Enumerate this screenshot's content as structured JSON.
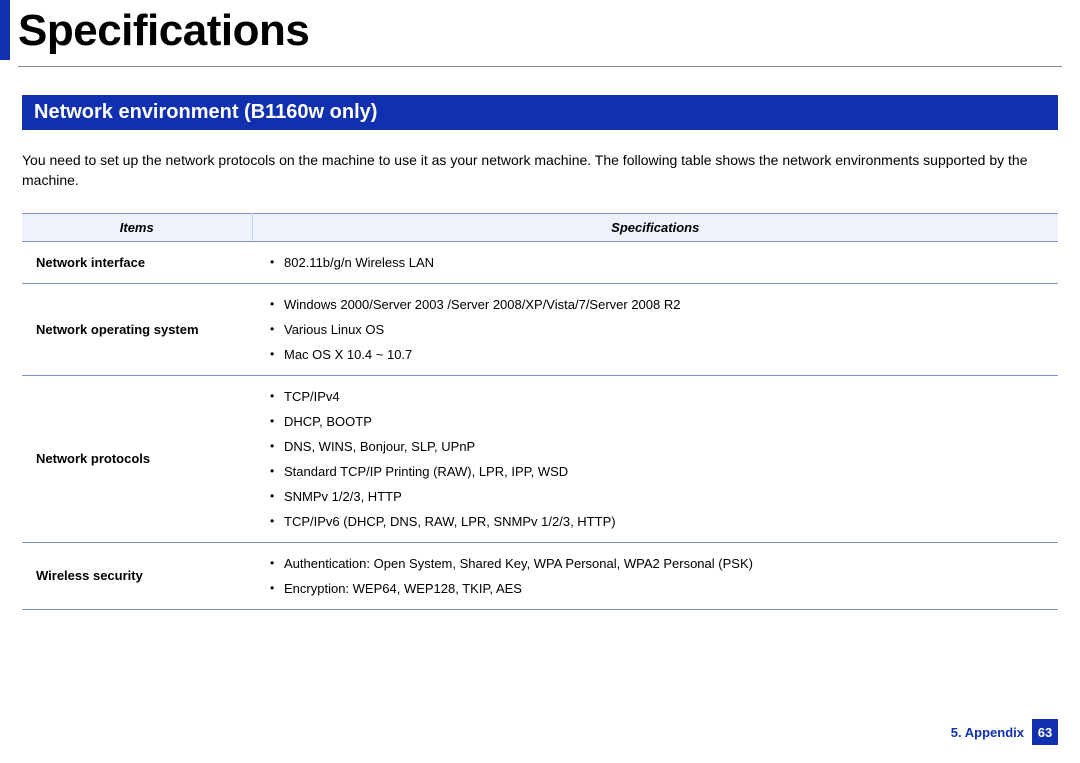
{
  "page_title": "Specifications",
  "section_header": "Network environment (B1160w only)",
  "intro_text": "You need to set up the network protocols on the machine to use it as your network machine. The following table shows the network environments supported by the machine.",
  "table": {
    "headers": {
      "items": "Items",
      "specs": "Specifications"
    },
    "rows": [
      {
        "item": "Network interface",
        "specs": [
          "802.11b/g/n Wireless LAN"
        ]
      },
      {
        "item": "Network operating system",
        "specs": [
          "Windows 2000/Server 2003 /Server 2008/XP/Vista/7/Server 2008 R2",
          "Various Linux OS",
          "Mac OS X 10.4 ~ 10.7"
        ]
      },
      {
        "item": "Network protocols",
        "specs": [
          "TCP/IPv4",
          "DHCP, BOOTP",
          "DNS, WINS, Bonjour, SLP, UPnP",
          "Standard TCP/IP Printing (RAW), LPR, IPP, WSD",
          "SNMPv 1/2/3, HTTP",
          "TCP/IPv6 (DHCP, DNS, RAW, LPR, SNMPv 1/2/3, HTTP)"
        ]
      },
      {
        "item": "Wireless security",
        "specs": [
          "Authentication: Open System, Shared Key, WPA Personal, WPA2 Personal (PSK)",
          "Encryption: WEP64, WEP128, TKIP, AES"
        ]
      }
    ]
  },
  "footer": {
    "chapter": "5. Appendix",
    "page": "63"
  },
  "colors": {
    "brand_blue": "#1030b0",
    "header_row_bg": "#eef3fb",
    "row_border": "#7a93c8"
  }
}
